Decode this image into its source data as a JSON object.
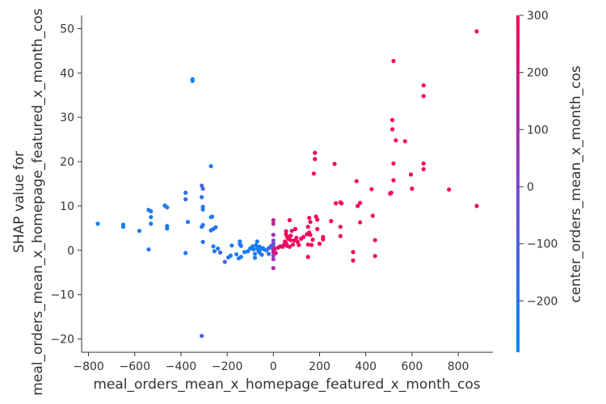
{
  "chart_data": {
    "type": "scatter",
    "title": "",
    "xlabel": "meal_orders_mean_x_homepage_featured_x_month_cos",
    "ylabel_lines": [
      "SHAP value for",
      "meal_orders_mean_x_homepage_featured_x_month_cos"
    ],
    "xlim": [
      -830,
      950
    ],
    "ylim": [
      -23,
      53
    ],
    "xticks": [
      -800,
      -600,
      -400,
      -200,
      0,
      200,
      400,
      600,
      800
    ],
    "yticks": [
      -20,
      -10,
      0,
      10,
      20,
      30,
      40,
      50
    ],
    "xtick_labels": [
      "−800",
      "−600",
      "−400",
      "−200",
      "0",
      "200",
      "400",
      "600",
      "800"
    ],
    "ytick_labels": [
      "−20",
      "−10",
      "0",
      "10",
      "20",
      "30",
      "40",
      "50"
    ],
    "grid": false,
    "colorbar": {
      "label": "center_orders_mean_x_month_cos",
      "range": [
        -290,
        300
      ],
      "ticks": [
        -200,
        -100,
        0,
        100,
        200,
        300
      ],
      "tick_labels": [
        "−200",
        "−100",
        "0",
        "100",
        "200",
        "300"
      ],
      "colors": [
        "#008afb",
        "#7d47d0",
        "#ff0052"
      ]
    },
    "points": [
      [
        -760,
        6.0,
        -250
      ],
      [
        -650,
        5.3,
        -250
      ],
      [
        -650,
        5.8,
        -240
      ],
      [
        -580,
        4.4,
        -230
      ],
      [
        -540,
        9.1,
        -230
      ],
      [
        -530,
        8.8,
        -220
      ],
      [
        -530,
        7.5,
        -230
      ],
      [
        -530,
        6.0,
        -230
      ],
      [
        -540,
        0.2,
        -220
      ],
      [
        -470,
        10.1,
        -210
      ],
      [
        -460,
        9.7,
        -220
      ],
      [
        -460,
        5.5,
        -230
      ],
      [
        -460,
        4.9,
        -220
      ],
      [
        -380,
        13.0,
        -200
      ],
      [
        -380,
        11.5,
        -130
      ],
      [
        -370,
        6.4,
        -210
      ],
      [
        -380,
        -0.6,
        -210
      ],
      [
        -350,
        38.6,
        -240
      ],
      [
        -350,
        38.2,
        -240
      ],
      [
        -310,
        14.6,
        -130
      ],
      [
        -305,
        13.9,
        -150
      ],
      [
        -310,
        12.0,
        -180
      ],
      [
        -305,
        9.8,
        -200
      ],
      [
        -305,
        9.2,
        -220
      ],
      [
        -310,
        5.3,
        -180
      ],
      [
        -305,
        5.7,
        -200
      ],
      [
        -305,
        1.9,
        -200
      ],
      [
        -310,
        -19.3,
        -120
      ],
      [
        -270,
        19.0,
        -230
      ],
      [
        -270,
        7.5,
        -220
      ],
      [
        -265,
        7.6,
        -230
      ],
      [
        -270,
        4.5,
        -200
      ],
      [
        -260,
        4.8,
        -210
      ],
      [
        -250,
        5.2,
        -220
      ],
      [
        -260,
        0.9,
        -230
      ],
      [
        -255,
        -0.2,
        -220
      ],
      [
        -240,
        0.4,
        -230
      ],
      [
        -230,
        -0.5,
        -120
      ],
      [
        -210,
        -2.6,
        -110
      ],
      [
        -195,
        -1.6,
        -180
      ],
      [
        -185,
        -1.2,
        -240
      ],
      [
        -180,
        1.1,
        -230
      ],
      [
        -160,
        -0.9,
        -240
      ],
      [
        -150,
        -1.8,
        -230
      ],
      [
        -145,
        2.0,
        -220
      ],
      [
        -145,
        1.4,
        -210
      ],
      [
        -140,
        1.0,
        -230
      ],
      [
        -140,
        -1.5,
        -230
      ],
      [
        -125,
        -0.4,
        -240
      ],
      [
        -110,
        -0.2,
        -230
      ],
      [
        -100,
        0.4,
        -230
      ],
      [
        -90,
        0.9,
        -240
      ],
      [
        -85,
        0.2,
        -230
      ],
      [
        -80,
        -0.8,
        -220
      ],
      [
        -80,
        -1.7,
        -220
      ],
      [
        -75,
        1.2,
        -230
      ],
      [
        -70,
        0.6,
        -240
      ],
      [
        -70,
        2.0,
        -230
      ],
      [
        -65,
        -0.1,
        -230
      ],
      [
        -60,
        0.8,
        -230
      ],
      [
        -60,
        -0.5,
        -220
      ],
      [
        -55,
        0.3,
        -230
      ],
      [
        -50,
        -1.0,
        -240
      ],
      [
        -45,
        0.5,
        -230
      ],
      [
        -40,
        0.2,
        -220
      ],
      [
        -30,
        0.0,
        -200
      ],
      [
        -20,
        0.5,
        -150
      ],
      [
        -10,
        1.0,
        -100
      ],
      [
        -20,
        -0.8,
        -180
      ],
      [
        -5,
        0.6,
        -130
      ],
      [
        0,
        0.1,
        -50
      ],
      [
        0,
        0.8,
        -50
      ],
      [
        0,
        1.5,
        -40
      ],
      [
        0,
        2.2,
        20
      ],
      [
        0,
        3.5,
        50
      ],
      [
        0,
        6.0,
        120
      ],
      [
        0,
        6.8,
        150
      ],
      [
        0,
        -1.2,
        30
      ],
      [
        0,
        -2.0,
        60
      ],
      [
        0,
        -0.4,
        200
      ],
      [
        0,
        -4.0,
        120
      ],
      [
        5,
        0.3,
        210
      ],
      [
        10,
        -0.6,
        220
      ],
      [
        20,
        0.6,
        230
      ],
      [
        30,
        0.9,
        240
      ],
      [
        40,
        0.8,
        260
      ],
      [
        45,
        1.2,
        260
      ],
      [
        50,
        2.0,
        270
      ],
      [
        55,
        1.6,
        270
      ],
      [
        55,
        3.6,
        280
      ],
      [
        55,
        4.3,
        280
      ],
      [
        60,
        3.0,
        270
      ],
      [
        60,
        1.0,
        250
      ],
      [
        65,
        2.6,
        280
      ],
      [
        70,
        0.8,
        250
      ],
      [
        70,
        6.8,
        270
      ],
      [
        75,
        2.3,
        280
      ],
      [
        75,
        3.3,
        280
      ],
      [
        80,
        4.4,
        200
      ],
      [
        85,
        1.3,
        250
      ],
      [
        90,
        2.2,
        270
      ],
      [
        95,
        4.8,
        280
      ],
      [
        100,
        2.8,
        260
      ],
      [
        105,
        1.9,
        280
      ],
      [
        110,
        1.2,
        280
      ],
      [
        120,
        2.6,
        270
      ],
      [
        130,
        3.0,
        280
      ],
      [
        145,
        3.6,
        280
      ],
      [
        150,
        1.3,
        270
      ],
      [
        150,
        5.3,
        280
      ],
      [
        155,
        4.0,
        270
      ],
      [
        155,
        7.3,
        280
      ],
      [
        160,
        6.4,
        280
      ],
      [
        160,
        3.5,
        280
      ],
      [
        150,
        -1.5,
        270
      ],
      [
        165,
        1.2,
        280
      ],
      [
        170,
        2.4,
        270
      ],
      [
        175,
        17.3,
        280
      ],
      [
        180,
        20.6,
        280
      ],
      [
        180,
        22.0,
        280
      ],
      [
        185,
        7.6,
        280
      ],
      [
        190,
        6.9,
        270
      ],
      [
        190,
        4.8,
        280
      ],
      [
        200,
        1.5,
        280
      ],
      [
        215,
        3.0,
        280
      ],
      [
        215,
        2.5,
        280
      ],
      [
        250,
        6.6,
        280
      ],
      [
        265,
        19.5,
        280
      ],
      [
        270,
        10.6,
        280
      ],
      [
        290,
        10.8,
        280
      ],
      [
        295,
        10.6,
        270
      ],
      [
        290,
        5.3,
        280
      ],
      [
        290,
        3.2,
        280
      ],
      [
        345,
        -0.4,
        280
      ],
      [
        345,
        -2.3,
        270
      ],
      [
        360,
        15.6,
        280
      ],
      [
        365,
        10.0,
        280
      ],
      [
        375,
        10.7,
        280
      ],
      [
        375,
        6.3,
        280
      ],
      [
        425,
        13.8,
        280
      ],
      [
        430,
        7.8,
        280
      ],
      [
        440,
        2.3,
        280
      ],
      [
        440,
        -1.3,
        270
      ],
      [
        505,
        12.8,
        280
      ],
      [
        510,
        13.0,
        280
      ],
      [
        515,
        29.4,
        280
      ],
      [
        515,
        27.3,
        280
      ],
      [
        520,
        19.6,
        280
      ],
      [
        520,
        15.8,
        280
      ],
      [
        520,
        42.7,
        280
      ],
      [
        530,
        24.8,
        280
      ],
      [
        570,
        24.6,
        280
      ],
      [
        595,
        17.1,
        280
      ],
      [
        600,
        13.9,
        280
      ],
      [
        650,
        37.2,
        280
      ],
      [
        650,
        34.8,
        280
      ],
      [
        650,
        19.6,
        280
      ],
      [
        650,
        18.3,
        280
      ],
      [
        760,
        13.7,
        280
      ],
      [
        880,
        49.4,
        280
      ],
      [
        880,
        10.0,
        280
      ]
    ]
  }
}
